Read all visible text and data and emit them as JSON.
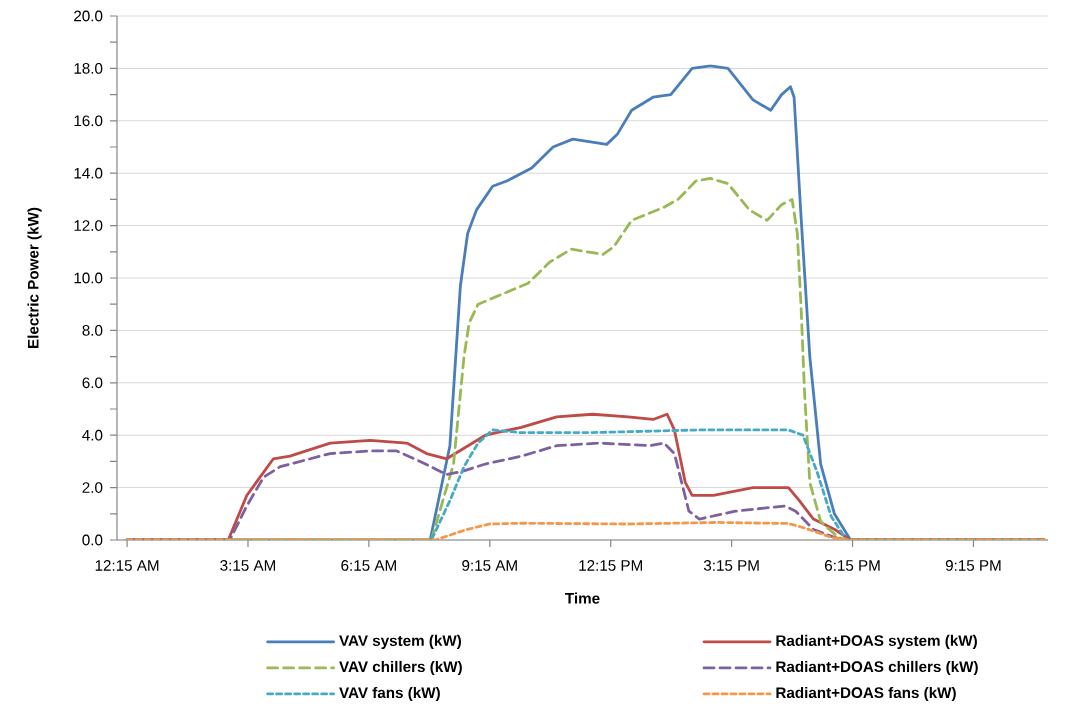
{
  "chart_data": {
    "type": "line",
    "xlabel": "Time",
    "ylabel": "Electric Power (kW)",
    "xlim": [
      0,
      23.1
    ],
    "ylim": [
      0,
      20
    ],
    "xticks": [
      {
        "value": 0.25,
        "label": "12:15 AM"
      },
      {
        "value": 3.25,
        "label": "3:15 AM"
      },
      {
        "value": 6.25,
        "label": "6:15 AM"
      },
      {
        "value": 9.25,
        "label": "9:15 AM"
      },
      {
        "value": 12.25,
        "label": "12:15 PM"
      },
      {
        "value": 15.25,
        "label": "3:15 PM"
      },
      {
        "value": 18.25,
        "label": "6:15 PM"
      },
      {
        "value": 21.25,
        "label": "9:15 PM"
      }
    ],
    "yticks": [
      {
        "value": 0,
        "label": "0.0"
      },
      {
        "value": 2,
        "label": "2.0"
      },
      {
        "value": 4,
        "label": "4.0"
      },
      {
        "value": 6,
        "label": "6.0"
      },
      {
        "value": 8,
        "label": "8.0"
      },
      {
        "value": 10,
        "label": "10.0"
      },
      {
        "value": 12,
        "label": "12.0"
      },
      {
        "value": 14,
        "label": "14.0"
      },
      {
        "value": 16,
        "label": "16.0"
      },
      {
        "value": 18,
        "label": "18.0"
      },
      {
        "value": 20,
        "label": "20.0"
      },
      {
        "value": 1,
        "label": null
      },
      {
        "value": 3,
        "label": null
      },
      {
        "value": 5,
        "label": null
      },
      {
        "value": 7,
        "label": null
      },
      {
        "value": 9,
        "label": null
      },
      {
        "value": 11,
        "label": null
      },
      {
        "value": 13,
        "label": null
      },
      {
        "value": 15,
        "label": null
      },
      {
        "value": 17,
        "label": null
      },
      {
        "value": 19,
        "label": null
      }
    ],
    "grid": "y",
    "legend": "bottom",
    "series": [
      {
        "name": "VAV system (kW)",
        "color": "#4a7ebb",
        "line_style": "solid",
        "x": [
          0.25,
          7.77,
          8.26,
          8.52,
          8.7,
          8.92,
          9.32,
          9.67,
          10.29,
          10.82,
          11.31,
          12.15,
          12.42,
          12.77,
          13.3,
          13.74,
          14.27,
          14.72,
          15.16,
          15.78,
          16.22,
          16.49,
          16.71,
          16.8,
          16.97,
          17.19,
          17.46,
          17.8,
          18.2,
          23.0
        ],
        "values": [
          0,
          0,
          3.6,
          9.7,
          11.7,
          12.6,
          13.5,
          13.7,
          14.2,
          15.0,
          15.3,
          15.1,
          15.5,
          16.4,
          16.9,
          17.0,
          18.0,
          18.1,
          18.0,
          16.8,
          16.4,
          17.0,
          17.3,
          16.9,
          12.4,
          7.0,
          2.9,
          1.0,
          0,
          0
        ]
      },
      {
        "name": "Radiant+DOAS system (kW)",
        "color": "#be4b48",
        "line_style": "solid",
        "x": [
          0.25,
          2.76,
          3.22,
          3.88,
          4.29,
          5.29,
          6.28,
          7.19,
          7.68,
          8.18,
          9.14,
          10.03,
          10.91,
          11.8,
          12.68,
          13.3,
          13.65,
          13.83,
          14.1,
          14.27,
          14.8,
          15.78,
          16.22,
          16.66,
          16.93,
          17.28,
          17.81,
          18.2,
          23.0
        ],
        "values": [
          0,
          0,
          1.7,
          3.1,
          3.2,
          3.7,
          3.8,
          3.7,
          3.3,
          3.1,
          4.0,
          4.3,
          4.7,
          4.8,
          4.7,
          4.6,
          4.8,
          4.2,
          2.2,
          1.7,
          1.7,
          2.0,
          2.0,
          2.0,
          1.5,
          0.8,
          0.4,
          0,
          0
        ]
      },
      {
        "name": "VAV chillers (kW)",
        "color": "#98b954",
        "line_style": "dashed",
        "x": [
          0.25,
          7.8,
          8.35,
          8.61,
          8.74,
          8.96,
          9.58,
          10.2,
          10.73,
          11.27,
          12.06,
          12.33,
          12.77,
          13.57,
          13.92,
          14.36,
          14.72,
          15.16,
          15.69,
          16.13,
          16.49,
          16.75,
          16.88,
          16.97,
          17.06,
          17.19,
          17.46,
          17.9,
          18.1,
          23.0
        ],
        "values": [
          0,
          0,
          2.9,
          7.0,
          8.3,
          9.0,
          9.4,
          9.8,
          10.6,
          11.1,
          10.9,
          11.2,
          12.2,
          12.7,
          13.0,
          13.7,
          13.8,
          13.6,
          12.6,
          12.2,
          12.8,
          13.0,
          11.7,
          9.0,
          5.6,
          2.2,
          0.7,
          0.1,
          0,
          0
        ]
      },
      {
        "name": "Radiant+DOAS chillers (kW)",
        "color": "#7d60a0",
        "line_style": "dashed",
        "x": [
          0.25,
          2.8,
          3.22,
          3.64,
          4.05,
          5.29,
          6.28,
          6.94,
          7.52,
          8.18,
          8.52,
          9.14,
          10.03,
          10.91,
          11.97,
          13.21,
          13.57,
          13.83,
          14.19,
          14.45,
          15.34,
          16.58,
          16.84,
          17.28,
          17.8,
          18.1,
          23.0
        ],
        "values": [
          0,
          0,
          1.3,
          2.4,
          2.8,
          3.3,
          3.4,
          3.4,
          3.0,
          2.5,
          2.6,
          2.9,
          3.2,
          3.6,
          3.7,
          3.6,
          3.7,
          3.3,
          1.1,
          0.8,
          1.1,
          1.3,
          1.1,
          0.4,
          0.1,
          0,
          0
        ]
      },
      {
        "name": "VAV fans (kW)",
        "color": "#46aac5",
        "line_style": "dotted",
        "x": [
          0.25,
          7.8,
          8.26,
          8.61,
          8.96,
          9.32,
          10.0,
          11.8,
          14.45,
          16.66,
          17.02,
          17.37,
          17.72,
          18.1,
          23.0
        ],
        "values": [
          0,
          0,
          1.5,
          2.8,
          3.7,
          4.2,
          4.1,
          4.1,
          4.2,
          4.2,
          4.0,
          2.6,
          0.9,
          0,
          0
        ]
      },
      {
        "name": "Radiant+DOAS fans (kW)",
        "color": "#f79646",
        "line_style": "dotted",
        "x": [
          0.25,
          7.9,
          8.61,
          9.23,
          10.03,
          12.68,
          14.89,
          16.66,
          17.1,
          17.72,
          18.1,
          23.0
        ],
        "values": [
          0,
          0,
          0.37,
          0.61,
          0.64,
          0.61,
          0.67,
          0.63,
          0.44,
          0.1,
          0,
          0
        ]
      }
    ]
  }
}
